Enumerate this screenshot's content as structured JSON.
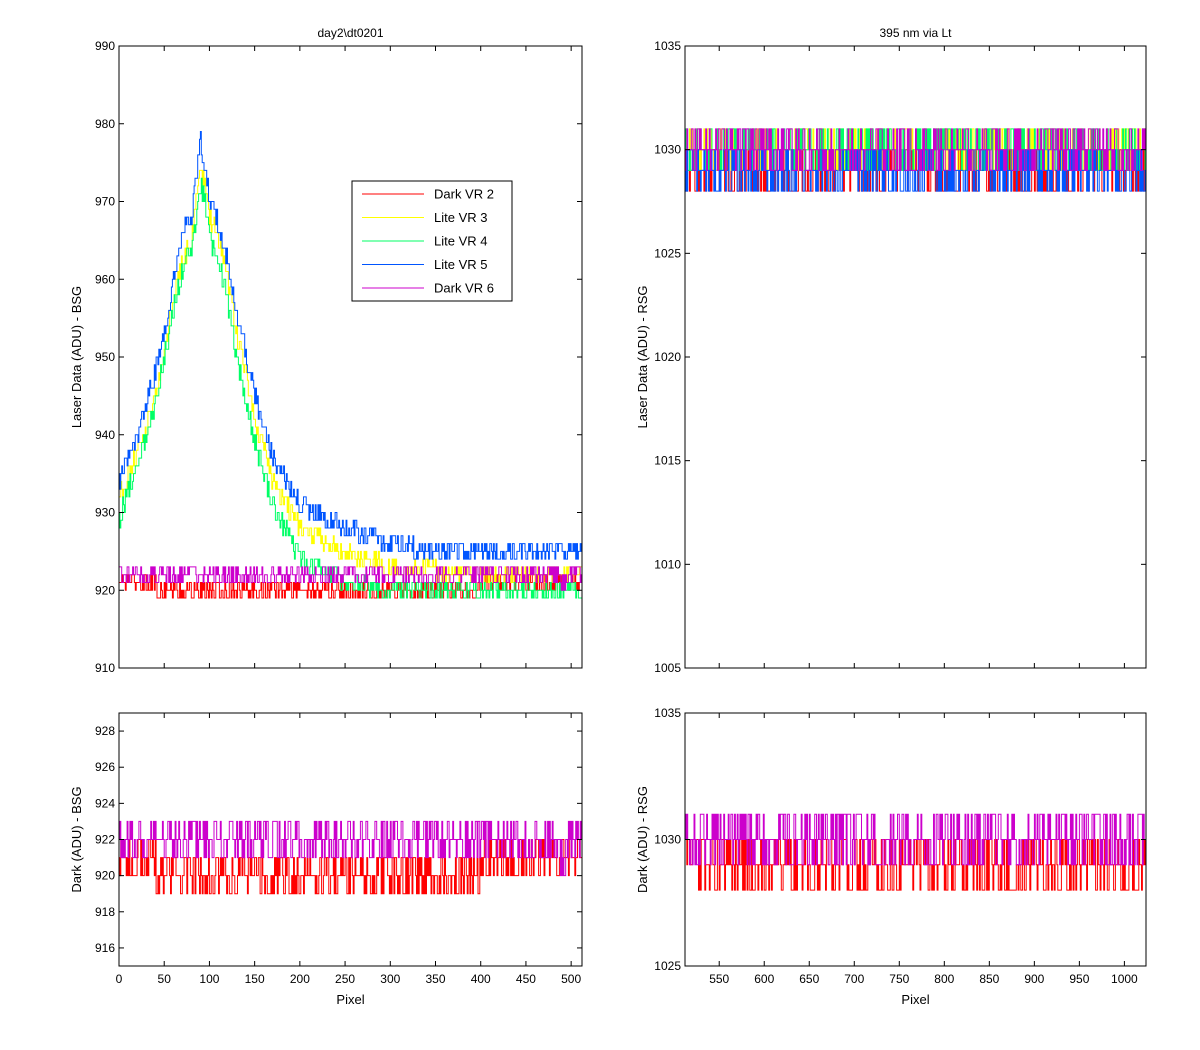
{
  "chart_data": [
    {
      "id": "top-left",
      "type": "line",
      "title": "day2\\dt0201",
      "xlabel": "",
      "ylabel": "Laser Data (ADU) - BSG",
      "xlim": [
        0,
        512
      ],
      "ylim": [
        910,
        990
      ],
      "xticks": [
        0,
        50,
        100,
        150,
        200,
        250,
        300,
        350,
        400,
        450,
        500
      ],
      "yticks": [
        910,
        920,
        930,
        940,
        950,
        960,
        970,
        980,
        990
      ],
      "show_xtick_labels": false,
      "legend": {
        "position": "upper-right-inset",
        "entries": [
          {
            "name": "Dark VR 2",
            "color": "#ff0000"
          },
          {
            "name": "Lite VR 3",
            "color": "#ffff00"
          },
          {
            "name": "Lite VR 4",
            "color": "#00ff66"
          },
          {
            "name": "Lite VR 5",
            "color": "#0055ff"
          },
          {
            "name": "Dark VR 6",
            "color": "#cc00cc"
          }
        ]
      },
      "series": [
        {
          "name": "Dark VR 2",
          "color": "#ff0000",
          "x": [
            0,
            20,
            40,
            60,
            70,
            80,
            90,
            100,
            120,
            150,
            200,
            250,
            300,
            350,
            400,
            450,
            480,
            500,
            512
          ],
          "y": [
            921,
            921,
            920.5,
            920,
            919.5,
            920,
            920,
            920,
            919.5,
            920,
            920,
            920,
            920,
            920,
            920.5,
            920.5,
            921,
            921,
            921
          ]
        },
        {
          "name": "Lite VR 3",
          "color": "#ffff00",
          "x": [
            0,
            10,
            20,
            30,
            40,
            50,
            60,
            70,
            80,
            90,
            95,
            100,
            110,
            120,
            130,
            150,
            170,
            200,
            250,
            300,
            350,
            400,
            450,
            500,
            512
          ],
          "y": [
            932,
            935,
            938,
            941,
            945,
            951,
            957,
            962,
            965,
            974,
            972,
            968,
            965,
            960,
            953,
            942,
            934,
            928,
            925,
            923,
            922.5,
            922,
            922,
            922,
            922
          ]
        },
        {
          "name": "Lite VR 4",
          "color": "#00ff66",
          "x": [
            0,
            10,
            20,
            30,
            40,
            50,
            60,
            70,
            80,
            90,
            95,
            100,
            110,
            120,
            130,
            150,
            170,
            200,
            250,
            300,
            350,
            400,
            450,
            500,
            512
          ],
          "y": [
            929,
            933,
            936,
            940,
            944,
            950,
            956,
            961,
            964,
            972,
            970,
            965,
            962,
            957,
            950,
            939,
            931,
            924,
            921,
            920,
            919.5,
            919.5,
            919.5,
            919.5,
            919.5
          ]
        },
        {
          "name": "Lite VR 5",
          "color": "#0055ff",
          "x": [
            0,
            10,
            20,
            30,
            40,
            50,
            60,
            70,
            80,
            90,
            95,
            100,
            110,
            120,
            130,
            150,
            170,
            200,
            250,
            300,
            350,
            400,
            450,
            500,
            512
          ],
          "y": [
            934,
            937,
            940,
            944,
            948,
            953,
            960,
            966,
            968,
            978,
            974,
            970,
            967,
            962,
            956,
            945,
            937,
            931,
            928,
            926,
            925,
            924.5,
            924.5,
            924.5,
            924.5
          ]
        },
        {
          "name": "Dark VR 6",
          "color": "#cc00cc",
          "x": [
            0,
            20,
            40,
            60,
            80,
            100,
            150,
            200,
            250,
            300,
            350,
            400,
            450,
            470,
            480,
            490,
            500,
            512
          ],
          "y": [
            921.5,
            921.5,
            921.5,
            921.5,
            921.5,
            921.5,
            921.5,
            921.5,
            921.5,
            921.5,
            921.5,
            921.5,
            921.5,
            921.5,
            922,
            921,
            922,
            921.5
          ]
        }
      ]
    },
    {
      "id": "top-right",
      "type": "line",
      "title": "395 nm via Lt",
      "xlabel": "",
      "ylabel": "Laser Data (ADU) - RSG",
      "xlim": [
        512,
        1024
      ],
      "ylim": [
        1005,
        1035
      ],
      "xticks": [
        550,
        600,
        650,
        700,
        750,
        800,
        850,
        900,
        950,
        1000
      ],
      "yticks": [
        1005,
        1010,
        1015,
        1020,
        1025,
        1030,
        1035
      ],
      "show_xtick_labels": false,
      "series": [
        {
          "name": "Dark VR 2",
          "color": "#ff0000",
          "x": [
            512,
            600,
            700,
            800,
            900,
            950,
            1000,
            1024
          ],
          "y": [
            1029,
            1029,
            1029,
            1029,
            1029,
            1028.5,
            1029,
            1029
          ]
        },
        {
          "name": "Lite VR 3",
          "color": "#ffff00",
          "x": [
            512,
            600,
            700,
            800,
            900,
            1000,
            1024
          ],
          "y": [
            1029.5,
            1029.5,
            1029.5,
            1029.5,
            1029.5,
            1029.5,
            1029.5
          ]
        },
        {
          "name": "Lite VR 4",
          "color": "#00ff66",
          "x": [
            512,
            600,
            700,
            800,
            900,
            1000,
            1024
          ],
          "y": [
            1030,
            1030,
            1030,
            1030,
            1030,
            1030,
            1030
          ]
        },
        {
          "name": "Lite VR 5",
          "color": "#0055ff",
          "x": [
            512,
            600,
            700,
            800,
            900,
            1000,
            1024
          ],
          "y": [
            1029,
            1029,
            1029,
            1029,
            1029,
            1029,
            1029
          ]
        },
        {
          "name": "Dark VR 6",
          "color": "#cc00cc",
          "x": [
            512,
            600,
            700,
            800,
            900,
            1000,
            1024
          ],
          "y": [
            1029.5,
            1029.5,
            1029.5,
            1029.5,
            1029.5,
            1029.5,
            1029.5
          ]
        }
      ]
    },
    {
      "id": "bottom-left",
      "type": "line",
      "title": "",
      "xlabel": "Pixel",
      "ylabel": "Dark (ADU) - BSG",
      "xlim": [
        0,
        512
      ],
      "ylim": [
        915,
        929
      ],
      "xticks": [
        0,
        50,
        100,
        150,
        200,
        250,
        300,
        350,
        400,
        450,
        500
      ],
      "yticks": [
        916,
        918,
        920,
        922,
        924,
        926,
        928
      ],
      "show_xtick_labels": true,
      "series": [
        {
          "name": "Dark VR 2",
          "color": "#ff0000",
          "x": [
            0,
            20,
            40,
            60,
            70,
            80,
            90,
            100,
            120,
            150,
            200,
            250,
            300,
            350,
            400,
            450,
            480,
            500,
            512
          ],
          "y": [
            921,
            921,
            920.5,
            920,
            919.5,
            920,
            920,
            920,
            919.5,
            920,
            920,
            920,
            920,
            920,
            920.5,
            920.5,
            921,
            921,
            921
          ]
        },
        {
          "name": "Dark VR 6",
          "color": "#cc00cc",
          "x": [
            0,
            20,
            40,
            60,
            80,
            100,
            150,
            200,
            250,
            300,
            350,
            400,
            450,
            470,
            480,
            490,
            500,
            512
          ],
          "y": [
            921.5,
            921.5,
            921.5,
            921.5,
            921.5,
            921.5,
            921.5,
            921.5,
            921.5,
            921.5,
            921.5,
            921.5,
            921.5,
            921.5,
            922,
            921,
            922,
            921.5
          ]
        }
      ]
    },
    {
      "id": "bottom-right",
      "type": "line",
      "title": "",
      "xlabel": "Pixel",
      "ylabel": "Dark (ADU) - RSG",
      "xlim": [
        512,
        1024
      ],
      "ylim": [
        1025,
        1035
      ],
      "xticks": [
        550,
        600,
        650,
        700,
        750,
        800,
        850,
        900,
        950,
        1000
      ],
      "yticks": [
        1025,
        1030,
        1035
      ],
      "show_xtick_labels": true,
      "series": [
        {
          "name": "Dark VR 2",
          "color": "#ff0000",
          "x": [
            512,
            600,
            700,
            800,
            900,
            950,
            1000,
            1024
          ],
          "y": [
            1029,
            1029,
            1029,
            1029,
            1029,
            1028.5,
            1029,
            1029
          ]
        },
        {
          "name": "Dark VR 6",
          "color": "#cc00cc",
          "x": [
            512,
            600,
            700,
            800,
            900,
            1000,
            1024
          ],
          "y": [
            1029.5,
            1029.5,
            1029.5,
            1029.5,
            1029.5,
            1029.5,
            1029.5
          ]
        }
      ]
    }
  ]
}
